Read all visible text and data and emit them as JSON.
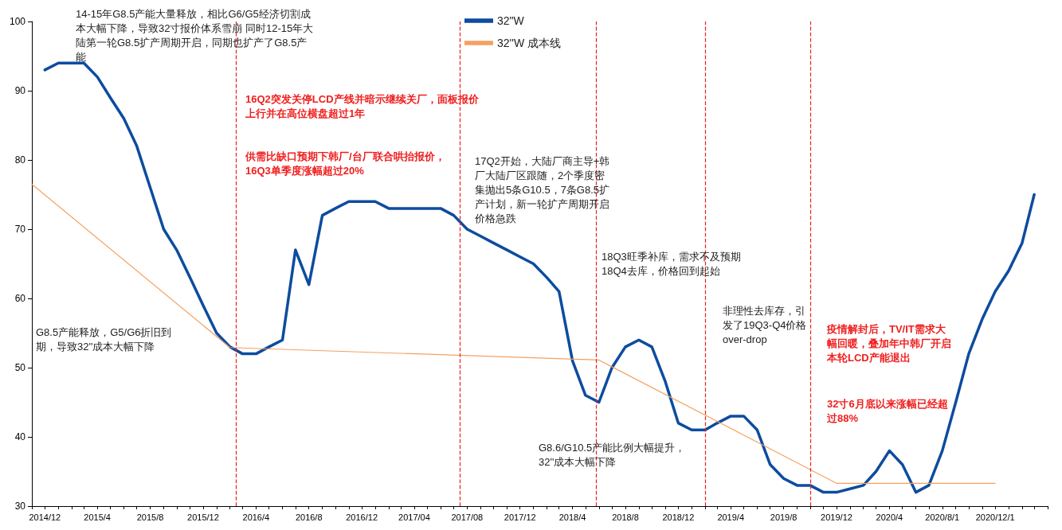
{
  "chart_data": {
    "type": "line",
    "marker": "none",
    "line_style": "solid",
    "grid": false,
    "legend": "top",
    "ylim": [
      30,
      100
    ],
    "yticks": [
      30,
      40,
      50,
      60,
      70,
      80,
      90,
      100
    ],
    "xlim": [
      "2014-11",
      "2021-04"
    ],
    "xticks": [
      {
        "value": "2014-11",
        "label": null
      },
      {
        "value": "2014-12",
        "label": "2014/12"
      },
      {
        "value": "2015-01",
        "label": null
      },
      {
        "value": "2015-02",
        "label": null
      },
      {
        "value": "2015-03",
        "label": null
      },
      {
        "value": "2015-04",
        "label": "2015/4"
      },
      {
        "value": "2015-05",
        "label": null
      },
      {
        "value": "2015-06",
        "label": null
      },
      {
        "value": "2015-07",
        "label": null
      },
      {
        "value": "2015-08",
        "label": "2015/8"
      },
      {
        "value": "2015-09",
        "label": null
      },
      {
        "value": "2015-10",
        "label": null
      },
      {
        "value": "2015-11",
        "label": null
      },
      {
        "value": "2015-12",
        "label": "2015/12"
      },
      {
        "value": "2016-01",
        "label": null
      },
      {
        "value": "2016-02",
        "label": null
      },
      {
        "value": "2016-03",
        "label": null
      },
      {
        "value": "2016-04",
        "label": "2016/4"
      },
      {
        "value": "2016-05",
        "label": null
      },
      {
        "value": "2016-06",
        "label": null
      },
      {
        "value": "2016-07",
        "label": null
      },
      {
        "value": "2016-08",
        "label": "2016/8"
      },
      {
        "value": "2016-09",
        "label": null
      },
      {
        "value": "2016-10",
        "label": null
      },
      {
        "value": "2016-11",
        "label": null
      },
      {
        "value": "2016-12",
        "label": "2016/12"
      },
      {
        "value": "2017-01",
        "label": null
      },
      {
        "value": "2017-02",
        "label": null
      },
      {
        "value": "2017-03",
        "label": null
      },
      {
        "value": "2017-04",
        "label": "2017/04"
      },
      {
        "value": "2017-05",
        "label": null
      },
      {
        "value": "2017-06",
        "label": null
      },
      {
        "value": "2017-07",
        "label": null
      },
      {
        "value": "2017-08",
        "label": "2017/08"
      },
      {
        "value": "2017-09",
        "label": null
      },
      {
        "value": "2017-10",
        "label": null
      },
      {
        "value": "2017-11",
        "label": null
      },
      {
        "value": "2017-12",
        "label": "2017/12"
      },
      {
        "value": "2018-01",
        "label": null
      },
      {
        "value": "2018-02",
        "label": null
      },
      {
        "value": "2018-03",
        "label": null
      },
      {
        "value": "2018-04",
        "label": "2018/4"
      },
      {
        "value": "2018-05",
        "label": null
      },
      {
        "value": "2018-06",
        "label": null
      },
      {
        "value": "2018-07",
        "label": null
      },
      {
        "value": "2018-08",
        "label": "2018/8"
      },
      {
        "value": "2018-09",
        "label": null
      },
      {
        "value": "2018-10",
        "label": null
      },
      {
        "value": "2018-11",
        "label": null
      },
      {
        "value": "2018-12",
        "label": "2018/12"
      },
      {
        "value": "2019-01",
        "label": null
      },
      {
        "value": "2019-02",
        "label": null
      },
      {
        "value": "2019-03",
        "label": null
      },
      {
        "value": "2019-04",
        "label": "2019/4"
      },
      {
        "value": "2019-05",
        "label": null
      },
      {
        "value": "2019-06",
        "label": null
      },
      {
        "value": "2019-07",
        "label": null
      },
      {
        "value": "2019-08",
        "label": "2019/8"
      },
      {
        "value": "2019-09",
        "label": null
      },
      {
        "value": "2019-10",
        "label": null
      },
      {
        "value": "2019-11",
        "label": null
      },
      {
        "value": "2019-12",
        "label": "2019/12"
      },
      {
        "value": "2020-01",
        "label": null
      },
      {
        "value": "2020-02",
        "label": null
      },
      {
        "value": "2020-03",
        "label": null
      },
      {
        "value": "2020-04",
        "label": "2020/4"
      },
      {
        "value": "2020-05",
        "label": null
      },
      {
        "value": "2020-06",
        "label": null
      },
      {
        "value": "2020-07",
        "label": null
      },
      {
        "value": "2020-08",
        "label": "2020/8/1"
      },
      {
        "value": "2020-09",
        "label": null
      },
      {
        "value": "2020-10",
        "label": null
      },
      {
        "value": "2020-11",
        "label": null
      },
      {
        "value": "2020-12",
        "label": "2020/12/1"
      },
      {
        "value": "2021-01",
        "label": null
      },
      {
        "value": "2021-02",
        "label": null
      },
      {
        "value": "2021-03",
        "label": null
      },
      {
        "value": "2021-04",
        "label": null
      }
    ],
    "series": [
      {
        "name": "32\"W",
        "color": "#0d4c9f",
        "x": [
          "2014-12",
          "2015-01",
          "2015-02",
          "2015-03",
          "2015-04",
          "2015-05",
          "2015-06",
          "2015-07",
          "2015-08",
          "2015-09",
          "2015-10",
          "2015-11",
          "2015-12",
          "2016-01",
          "2016-02",
          "2016-03",
          "2016-04",
          "2016-05",
          "2016-06",
          "2016-07",
          "2016-08",
          "2016-09",
          "2016-10",
          "2016-11",
          "2016-12",
          "2017-01",
          "2017-02",
          "2017-03",
          "2017-04",
          "2017-05",
          "2017-06",
          "2017-07",
          "2017-08",
          "2017-09",
          "2017-10",
          "2017-11",
          "2017-12",
          "2018-01",
          "2018-02",
          "2018-03",
          "2018-04",
          "2018-05",
          "2018-06",
          "2018-07",
          "2018-08",
          "2018-09",
          "2018-10",
          "2018-11",
          "2018-12",
          "2019-01",
          "2019-02",
          "2019-03",
          "2019-04",
          "2019-05",
          "2019-06",
          "2019-07",
          "2019-08",
          "2019-09",
          "2019-10",
          "2019-11",
          "2019-12",
          "2020-01",
          "2020-02",
          "2020-03",
          "2020-04",
          "2020-05",
          "2020-06",
          "2020-07",
          "2020-08",
          "2020-09",
          "2020-10",
          "2020-11",
          "2020-12",
          "2021-01",
          "2021-02",
          "2021-03"
        ],
        "values": [
          93,
          94,
          94,
          94,
          92,
          89,
          86,
          82,
          76,
          70,
          67,
          63,
          59,
          55,
          53,
          52,
          52,
          53,
          54,
          67,
          62,
          72,
          73,
          74,
          74,
          74,
          73,
          73,
          73,
          73,
          73,
          72,
          70,
          69,
          68,
          67,
          66,
          65,
          63,
          61,
          51,
          46,
          45,
          50,
          53,
          54,
          53,
          48,
          42,
          41,
          41,
          42,
          43,
          43,
          41,
          36,
          34,
          33,
          33,
          32,
          32,
          32.5,
          33,
          35,
          38,
          36,
          32,
          33,
          38,
          45,
          52,
          57,
          61,
          64,
          68,
          75
        ]
      },
      {
        "name": "32''W 成本线",
        "color": "#f4a060",
        "x": [
          "2014-11",
          "2016-02",
          "2018-06",
          "2019-12",
          "2020-12"
        ],
        "values": [
          76.5,
          52.9,
          51.1,
          33.3,
          33.3
        ]
      }
    ],
    "ref_lines": [
      {
        "axis": "x",
        "value": "2016-02-15",
        "color": "#e8201e",
        "line_style": "dashed"
      },
      {
        "axis": "x",
        "value": "2017-07-15",
        "color": "#e8201e",
        "line_style": "dashed"
      },
      {
        "axis": "x",
        "value": "2018-05-25",
        "color": "#e8201e",
        "line_style": "dashed"
      },
      {
        "axis": "x",
        "value": "2019-02",
        "color": "#e8201e",
        "line_style": "dashed"
      },
      {
        "axis": "x",
        "value": "2019-10",
        "color": "#e8201e",
        "line_style": "dashed"
      }
    ],
    "annotations": [
      "14-15年G8.5产能大量释放，相比G6/G5经济切割成本大幅下降，导致32寸报价体系雪崩 同时12-15年大陆第一轮G8.5扩产周期开启，同期也扩产了G8.5产能",
      "G8.5产能释放，G5/G6折旧到期，导致32''成本大幅下降",
      "16Q2突发关停LCD产线并暗示继续关厂，面板报价上行并在高位横盘超过1年",
      "供需比缺口预期下韩厂/台厂联合哄抬报价， 16Q3单季度涨幅超过20%",
      "17Q2开始，大陆厂商主导+韩厂大陆厂区跟随，2个季度密集抛出5条G10.5，7条G8.5扩产计划，新一轮扩产周期开启价格急跌",
      "18Q3旺季补库，需求不及预期18Q4去库，价格回到起始",
      "非理性去库存，引发了19Q3-Q4价格over-drop",
      "疫情解封后，TV/IT需求大幅回暖，叠加年中韩厂开启本轮LCD产能退出",
      "32寸6月底以来涨幅已经超过88%",
      "G8.6/G10.5产能比例大幅提升，32''成本大幅下降"
    ]
  }
}
